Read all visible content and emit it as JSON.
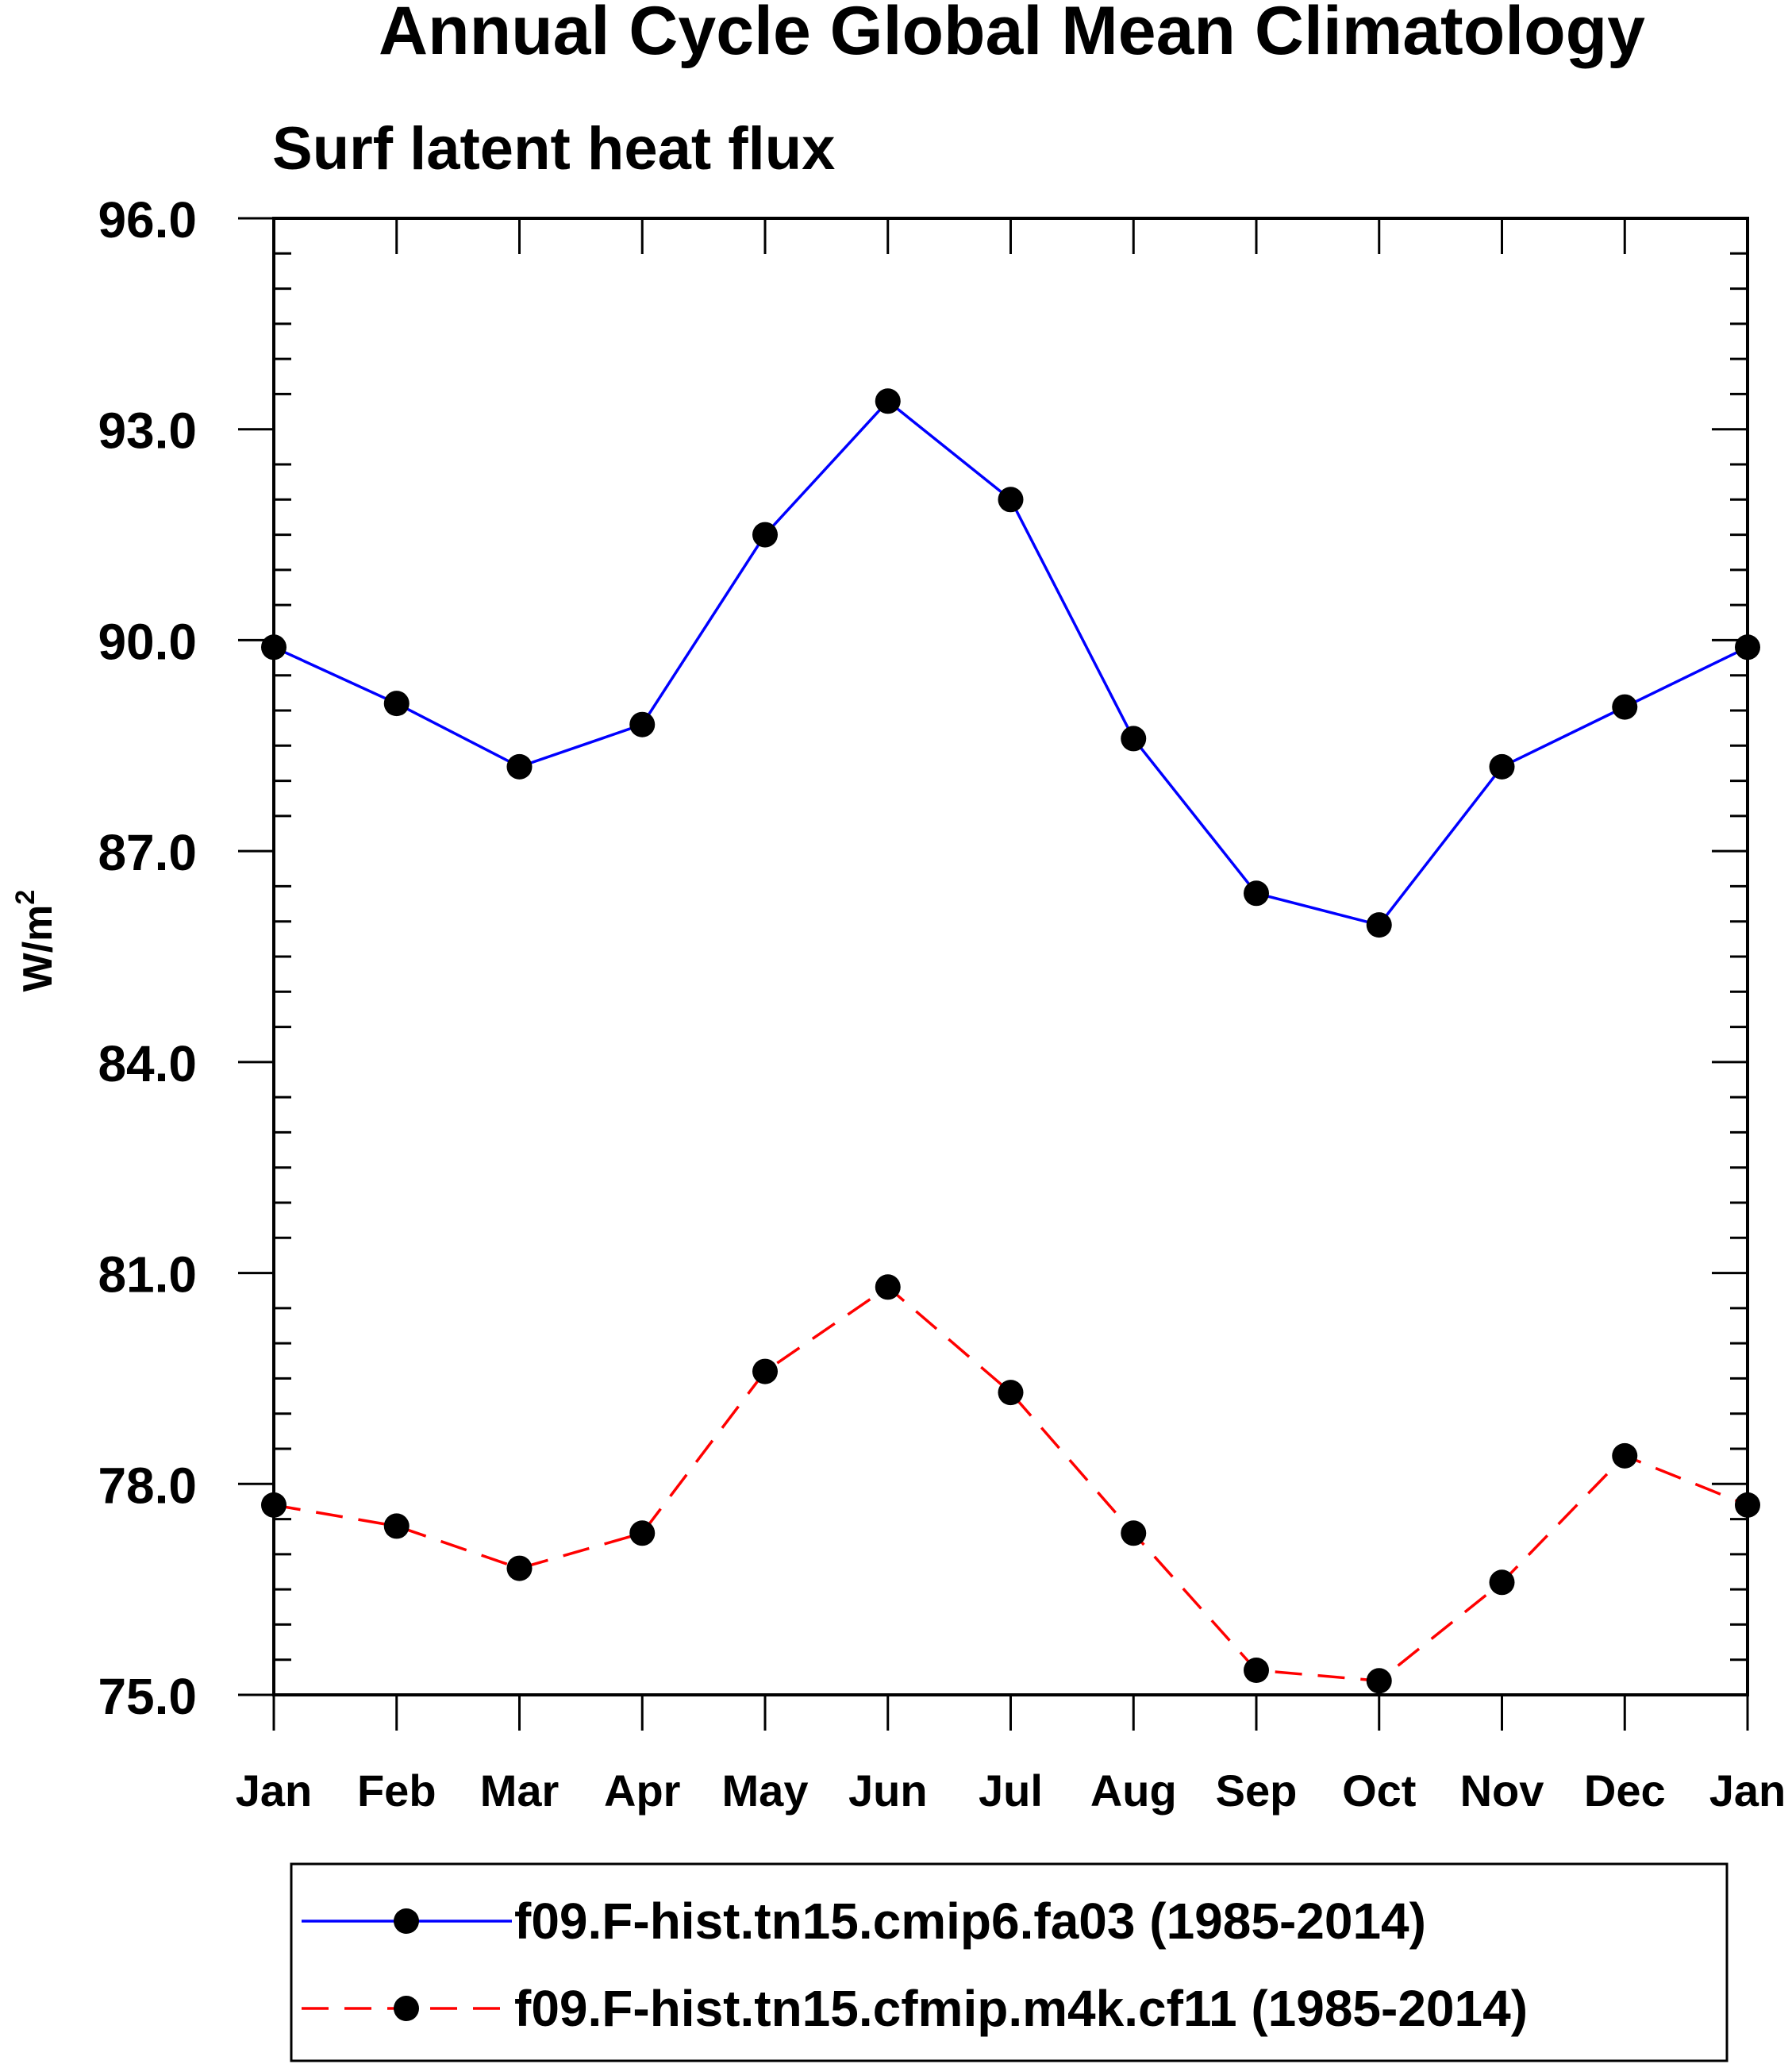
{
  "chart_data": {
    "type": "line",
    "title": "Annual Cycle Global Mean Climatology",
    "subtitle": "Surf latent heat flux",
    "ylabel": "W/m",
    "ylabel_superscript": "2",
    "xlabel": "",
    "categories": [
      "Jan",
      "Feb",
      "Mar",
      "Apr",
      "May",
      "Jun",
      "Jul",
      "Aug",
      "Sep",
      "Oct",
      "Nov",
      "Dec",
      "Jan"
    ],
    "ylim": [
      75.0,
      96.0
    ],
    "yticks": [
      "75.0",
      "78.0",
      "81.0",
      "84.0",
      "87.0",
      "90.0",
      "93.0",
      "96.0"
    ],
    "series": [
      {
        "name": "f09.F-hist.tn15.cmip6.fa03 (1985-2014)",
        "color": "#0000ff",
        "dash": "solid",
        "values": [
          89.9,
          89.1,
          88.2,
          88.8,
          91.5,
          93.4,
          92.0,
          88.6,
          86.4,
          85.95,
          88.2,
          89.05,
          89.9
        ]
      },
      {
        "name": "f09.F-hist.tn15.cfmip.m4k.cf11 (1985-2014)",
        "color": "#ff0000",
        "dash": "dashed",
        "values": [
          77.7,
          77.4,
          76.8,
          77.3,
          79.6,
          80.8,
          79.3,
          77.3,
          75.35,
          75.2,
          76.6,
          78.4,
          77.7
        ]
      }
    ],
    "legend_position": "bottom"
  }
}
